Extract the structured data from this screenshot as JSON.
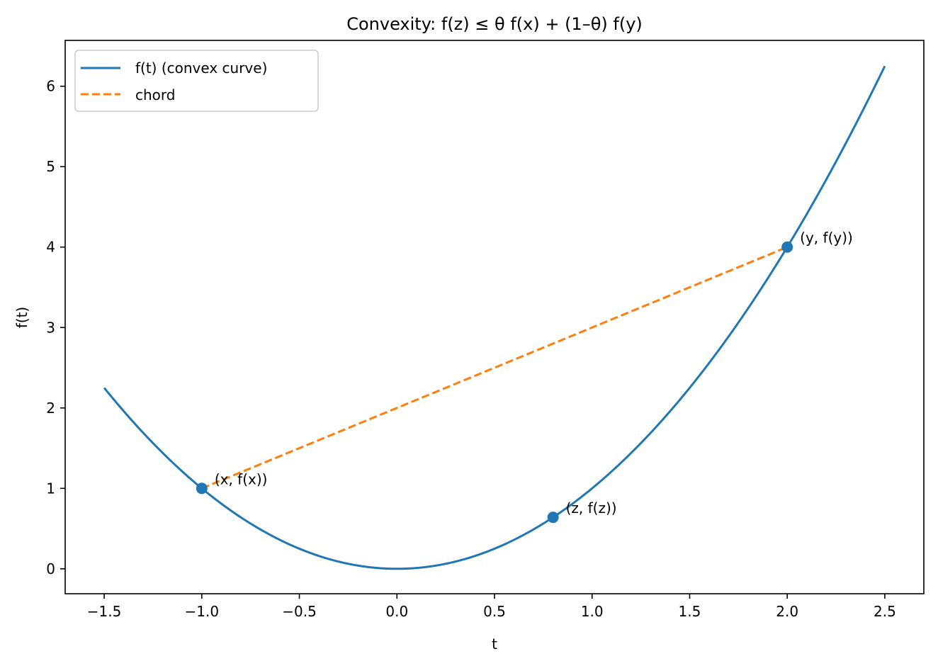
{
  "chart_data": {
    "type": "line",
    "title": "Convexity: f(z) ≤ θ f(x) + (1–θ) f(y)",
    "xlabel": "t",
    "ylabel": "f(t)",
    "xlim": [
      -1.7,
      2.7
    ],
    "ylim": [
      -0.31,
      6.57
    ],
    "grid": false,
    "x_ticks": [
      -1.5,
      -1.0,
      -0.5,
      0.0,
      0.5,
      1.0,
      1.5,
      2.0,
      2.5
    ],
    "x_tick_labels": [
      "−1.5",
      "−1.0",
      "−0.5",
      "0.0",
      "0.5",
      "1.0",
      "1.5",
      "2.0",
      "2.5"
    ],
    "y_ticks": [
      0,
      1,
      2,
      3,
      4,
      5,
      6
    ],
    "y_tick_labels": [
      "0",
      "1",
      "2",
      "3",
      "4",
      "5",
      "6"
    ],
    "legend": {
      "placement": "top-left",
      "entries": [
        {
          "label": "f(t) (convex curve)",
          "color": "#1f77b4",
          "style": "solid"
        },
        {
          "label": "chord",
          "color": "#ff7f0e",
          "style": "dashed"
        }
      ]
    },
    "series": [
      {
        "name": "f(t) (convex curve)",
        "function": "t^2",
        "x_range": [
          -1.5,
          2.5
        ],
        "color": "#1f77b4"
      },
      {
        "name": "chord",
        "x": [
          -1.0,
          2.0
        ],
        "y": [
          1.0,
          4.0
        ],
        "color": "#ff7f0e"
      }
    ],
    "points": [
      {
        "x": -1.0,
        "y": 1.0,
        "label": "(x, f(x))"
      },
      {
        "x": 0.8,
        "y": 0.64,
        "label": "(z, f(z))"
      },
      {
        "x": 2.0,
        "y": 4.0,
        "label": "(y, f(y))"
      }
    ]
  }
}
